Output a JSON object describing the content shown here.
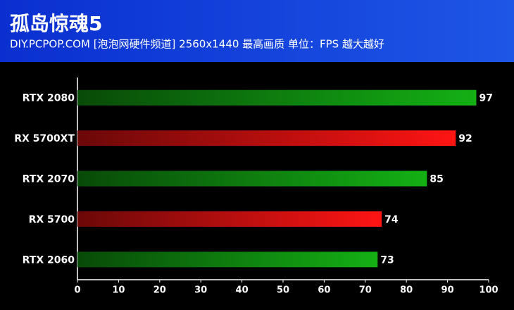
{
  "chart_data": {
    "type": "hbar",
    "title": "孤岛惊魂5",
    "subtitle": "DIY.PCPOP.COM [泡泡网硬件频道]  2560x1440 最高画质  单位：FPS 越大越好",
    "categories": [
      "RTX 2080",
      "RX 5700XT",
      "RTX 2070",
      "RX 5700",
      "RTX 2060"
    ],
    "values": [
      97,
      92,
      85,
      74,
      73
    ],
    "colors": [
      "#14b014",
      "#ff1414",
      "#14b014",
      "#ff1414",
      "#14b014"
    ],
    "xlim": [
      0,
      100
    ],
    "xticks": [
      0,
      10,
      20,
      30,
      40,
      50,
      60,
      70,
      80,
      90,
      100
    ]
  }
}
